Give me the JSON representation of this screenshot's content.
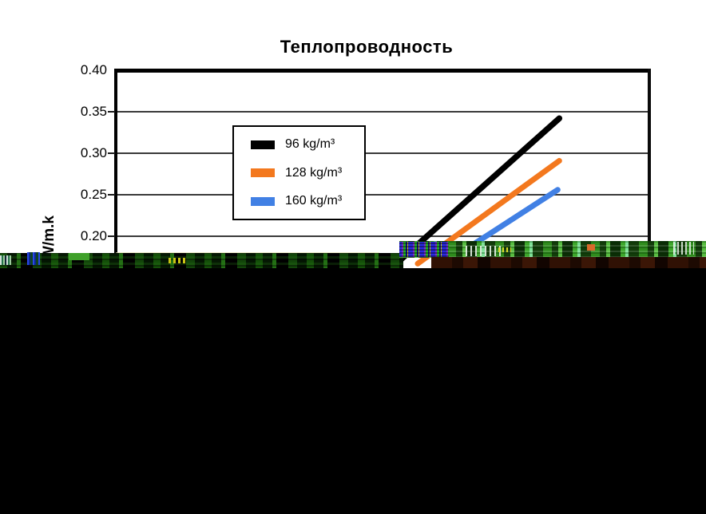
{
  "page": {
    "background": "#FFFFFF"
  },
  "chart": {
    "title": "Теплопроводность",
    "y_axis": {
      "label": "W/m.k",
      "ticks": [
        "0.40",
        "0.35",
        "0.30",
        "0.25",
        "0.20"
      ]
    },
    "legend": {
      "items": [
        {
          "label": "96 kg/m³",
          "color": "#000000"
        },
        {
          "label": "128 kg/m³",
          "color": "#F3781E"
        },
        {
          "label": "160 kg/m³",
          "color": "#4180E4"
        }
      ]
    }
  },
  "chart_data": {
    "type": "line",
    "title": "Теплопроводность",
    "ylabel": "W/m.k",
    "yticks": [
      0.2,
      0.25,
      0.3,
      0.35,
      0.4
    ],
    "ylim_visible": [
      0.185,
      0.4
    ],
    "grid": "horizontal gridlines at each 0.05 step",
    "legend_position": "upper-left inside plot, boxed",
    "x_axis": {
      "visible": false,
      "reason": "lower part of image obscured by corrupted black region"
    },
    "series": [
      {
        "name": "96 kg/m³",
        "color": "#000000",
        "points_frac_value": [
          [
            0.525,
            0.167
          ],
          [
            0.83,
            0.342
          ]
        ],
        "visible_end_value": 0.342
      },
      {
        "name": "128 kg/m³",
        "color": "#F3781E",
        "points_frac_value": [
          [
            0.565,
            0.167
          ],
          [
            0.83,
            0.291
          ]
        ],
        "visible_end_value": 0.291
      },
      {
        "name": "160 kg/m³",
        "color": "#4180E4",
        "points_frac_value": [
          [
            0.628,
            0.173
          ],
          [
            0.827,
            0.256
          ]
        ],
        "visible_end_value": 0.256
      }
    ]
  },
  "corruption": {
    "description": "Glitched pixel-noise band across the image (~y300-336) and solid black region covering the bottom half; x-axis and lower plot area are not visible.",
    "noise_colors": [
      "#145009",
      "#3da72b",
      "#58bd41",
      "#2a2ae0",
      "#7a2ecc",
      "#c9c91e",
      "#301104"
    ],
    "black_region_color": "#000000"
  }
}
